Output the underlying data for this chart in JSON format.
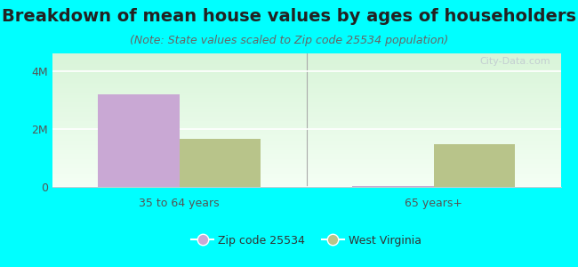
{
  "title": "Breakdown of mean house values by ages of householders",
  "subtitle": "(Note: State values scaled to Zip code 25534 population)",
  "categories": [
    "35 to 64 years",
    "65 years+"
  ],
  "zip_values": [
    3200000,
    30000
  ],
  "state_values": [
    1650000,
    1480000
  ],
  "zip_color": "#c9a8d4",
  "state_color": "#b8c48a",
  "background_color": "#00ffff",
  "plot_bg_color": "#e8f5e3",
  "ylim": [
    0,
    4600000
  ],
  "yticks": [
    0,
    2000000,
    4000000
  ],
  "ytick_labels": [
    "0",
    "2M",
    "4M"
  ],
  "legend_zip_label": "Zip code 25534",
  "legend_state_label": "West Virginia",
  "bar_width": 0.32,
  "title_fontsize": 14,
  "subtitle_fontsize": 9,
  "axis_fontsize": 9,
  "legend_fontsize": 9,
  "watermark": "City-Data.com"
}
